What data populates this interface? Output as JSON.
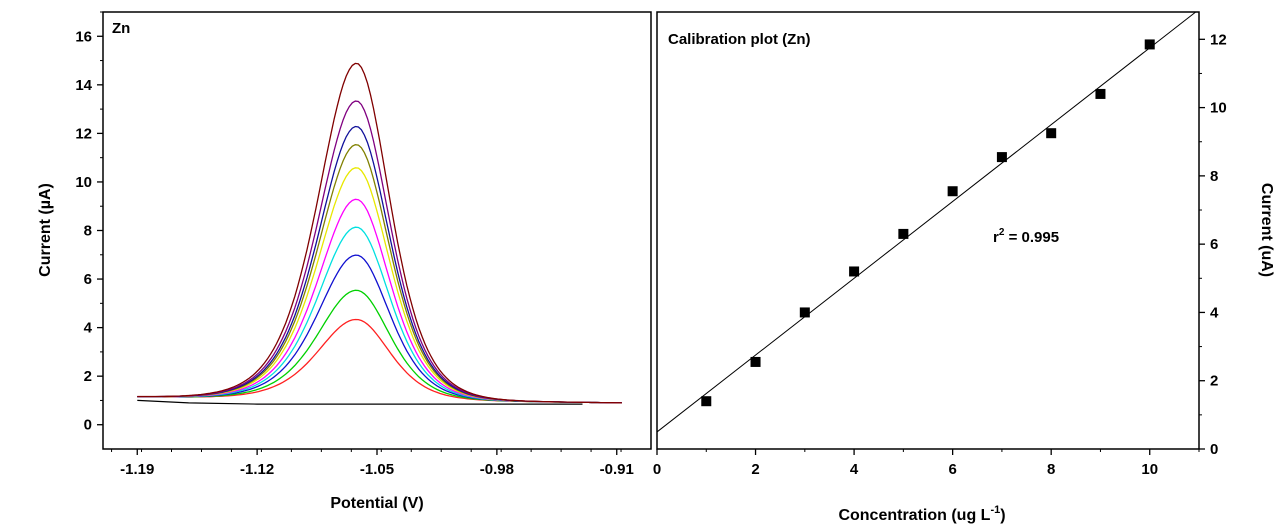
{
  "chart_data": [
    {
      "type": "line",
      "panel_label": "Zn",
      "xlabel": "Potential (V)",
      "ylabel": "Current  (µA)",
      "xlim": [
        -1.21,
        -0.89
      ],
      "ylim": [
        -1.0,
        17.0
      ],
      "x_ticks": [
        "-1.19",
        "-1.12",
        "-1.05",
        "-0.98",
        "-0.91"
      ],
      "x_tick_values": [
        -1.19,
        -1.12,
        -1.05,
        -0.98,
        -0.91
      ],
      "y_ticks": [
        "0",
        "2",
        "4",
        "6",
        "8",
        "10",
        "12",
        "14",
        "16"
      ],
      "y_tick_values": [
        0,
        2,
        4,
        6,
        8,
        10,
        12,
        14,
        16
      ],
      "peak_potential": -1.062,
      "baseline": {
        "color": "#000000",
        "x": [
          -1.19,
          -1.16,
          -1.12,
          -1.08,
          -1.04,
          -1.0,
          -0.96,
          -0.93
        ],
        "values": [
          1.0,
          0.9,
          0.85,
          0.85,
          0.85,
          0.85,
          0.85,
          0.85
        ]
      },
      "series": [
        {
          "color": "#ff2020",
          "peak": 4.3
        },
        {
          "color": "#00d000",
          "peak": 5.5
        },
        {
          "color": "#1010d0",
          "peak": 6.95
        },
        {
          "color": "#00e0e0",
          "peak": 8.1
        },
        {
          "color": "#ff00ff",
          "peak": 9.25
        },
        {
          "color": "#e8e800",
          "peak": 10.55
        },
        {
          "color": "#808000",
          "peak": 11.5
        },
        {
          "color": "#10109a",
          "peak": 12.25
        },
        {
          "color": "#800080",
          "peak": 13.3
        },
        {
          "color": "#800000",
          "peak": 14.85
        }
      ]
    },
    {
      "type": "scatter",
      "panel_label": "Calibration plot (Zn)",
      "xlabel": "Concentration (ug L",
      "xlabel_sup": "-1",
      "xlabel_end": ")",
      "ylabel": "Current (uA)",
      "xlim": [
        0,
        11
      ],
      "ylim": [
        0,
        12.8
      ],
      "x_ticks": [
        "0",
        "2",
        "4",
        "6",
        "8",
        "10"
      ],
      "x_tick_values": [
        0,
        2,
        4,
        6,
        8,
        10
      ],
      "y_ticks": [
        "0",
        "2",
        "4",
        "6",
        "8",
        "10",
        "12"
      ],
      "y_tick_values": [
        0,
        2,
        4,
        6,
        8,
        10,
        12
      ],
      "x": [
        1,
        2,
        3,
        4,
        5,
        6,
        7,
        8,
        9,
        10
      ],
      "values": [
        1.4,
        2.55,
        4.0,
        5.2,
        6.3,
        7.55,
        8.55,
        9.25,
        10.4,
        11.85
      ],
      "fit": {
        "slope": 1.125,
        "intercept": 0.5
      },
      "annotation_r": "r",
      "annotation_sup": "2",
      "annotation_val": " = 0.995"
    }
  ]
}
